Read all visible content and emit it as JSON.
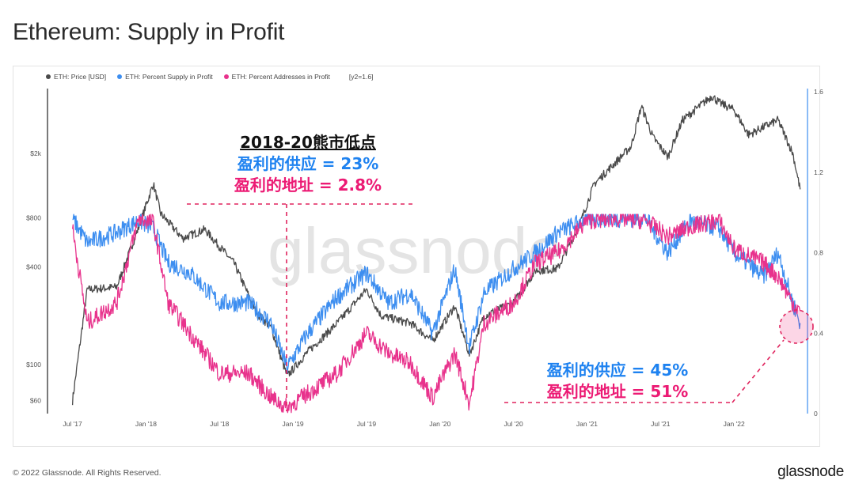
{
  "title": "Ethereum: Supply in Profit",
  "legend": {
    "price": "ETH: Price [USD]",
    "supply": "ETH: Percent Supply in Profit",
    "addresses": "ETH: Percent Addresses in Profit",
    "note": "[y2=1.6]"
  },
  "colors": {
    "price": "#4a4a4a",
    "supply": "#3d8ef0",
    "addresses": "#e8328c",
    "annot_dash": "#e0245e"
  },
  "annotations": {
    "top": {
      "line1": "2018-20熊市低点",
      "line2": "盈利的供应 = 23%",
      "line3": "盈利的地址 = 2.8%"
    },
    "bottom": {
      "line1": "盈利的供应 = 45%",
      "line2": "盈利的地址 = 51%"
    }
  },
  "watermark": "glassnode",
  "footer": {
    "copyright": "© 2022 Glassnode. All Rights Reserved.",
    "brand": "glassnode"
  },
  "chart_data": {
    "type": "line",
    "x_ticks": [
      "Jul '17",
      "Jan '18",
      "Jul '18",
      "Jan '19",
      "Jul '19",
      "Jan '20",
      "Jul '20",
      "Jan '21",
      "Jul '21",
      "Jan '22"
    ],
    "y_left_ticks": [
      "$2k",
      "$800",
      "$400",
      "$100",
      "$60"
    ],
    "y_left_values": [
      2000,
      800,
      400,
      100,
      60
    ],
    "y_left_scale": "log",
    "y_right_ticks": [
      "1.6",
      "1.2",
      "0.8",
      "0.4",
      "0"
    ],
    "y_right_values": [
      1.6,
      1.2,
      0.8,
      0.4,
      0
    ],
    "ylim_right": [
      0,
      1.6
    ],
    "series": [
      {
        "name": "ETH: Price [USD]",
        "axis": "left",
        "x": [
          2017.5,
          2017.6,
          2017.8,
          2017.95,
          2018.05,
          2018.1,
          2018.25,
          2018.4,
          2018.6,
          2018.75,
          2018.85,
          2018.96,
          2019.1,
          2019.3,
          2019.5,
          2019.6,
          2019.8,
          2019.95,
          2020.1,
          2020.2,
          2020.3,
          2020.5,
          2020.65,
          2020.8,
          2020.95,
          2021.05,
          2021.15,
          2021.3,
          2021.37,
          2021.45,
          2021.55,
          2021.65,
          2021.85,
          2021.9,
          2022.0,
          2022.1,
          2022.2,
          2022.3,
          2022.4,
          2022.45
        ],
        "y": [
          60,
          290,
          300,
          700,
          1300,
          850,
          600,
          680,
          420,
          210,
          170,
          85,
          120,
          180,
          290,
          200,
          180,
          140,
          230,
          115,
          200,
          240,
          380,
          390,
          730,
          1300,
          1600,
          2200,
          3900,
          2500,
          1900,
          3200,
          4500,
          4100,
          3700,
          2600,
          2900,
          3200,
          2000,
          1200
        ]
      },
      {
        "name": "ETH: Percent Supply in Profit",
        "axis": "right",
        "x": [
          2017.5,
          2017.6,
          2017.8,
          2017.95,
          2018.05,
          2018.15,
          2018.3,
          2018.5,
          2018.7,
          2018.85,
          2018.96,
          2019.1,
          2019.3,
          2019.5,
          2019.65,
          2019.8,
          2019.95,
          2020.1,
          2020.2,
          2020.3,
          2020.5,
          2020.65,
          2020.8,
          2021.0,
          2021.2,
          2021.4,
          2021.55,
          2021.7,
          2021.9,
          2022.0,
          2022.2,
          2022.3,
          2022.4,
          2022.45
        ],
        "y": [
          0.97,
          0.85,
          0.9,
          0.96,
          0.92,
          0.75,
          0.7,
          0.55,
          0.55,
          0.45,
          0.23,
          0.4,
          0.58,
          0.7,
          0.55,
          0.6,
          0.4,
          0.72,
          0.33,
          0.6,
          0.72,
          0.8,
          0.9,
          0.97,
          0.97,
          0.97,
          0.8,
          0.96,
          0.92,
          0.8,
          0.68,
          0.8,
          0.55,
          0.45
        ]
      },
      {
        "name": "ETH: Percent Addresses in Profit",
        "axis": "right",
        "x": [
          2017.5,
          2017.6,
          2017.8,
          2017.95,
          2018.05,
          2018.15,
          2018.3,
          2018.5,
          2018.7,
          2018.85,
          2018.96,
          2019.1,
          2019.3,
          2019.5,
          2019.65,
          2019.8,
          2019.95,
          2020.1,
          2020.2,
          2020.3,
          2020.5,
          2020.65,
          2020.8,
          2021.0,
          2021.2,
          2021.4,
          2021.55,
          2021.7,
          2021.9,
          2022.0,
          2022.2,
          2022.3,
          2022.4,
          2022.45
        ],
        "y": [
          0.92,
          0.45,
          0.55,
          0.97,
          0.95,
          0.55,
          0.4,
          0.2,
          0.2,
          0.08,
          0.028,
          0.1,
          0.2,
          0.4,
          0.3,
          0.25,
          0.08,
          0.3,
          0.05,
          0.45,
          0.55,
          0.75,
          0.8,
          0.96,
          0.97,
          0.96,
          0.88,
          0.93,
          0.96,
          0.82,
          0.75,
          0.68,
          0.55,
          0.51
        ]
      }
    ],
    "grid": true,
    "legend_position": "top-left"
  }
}
